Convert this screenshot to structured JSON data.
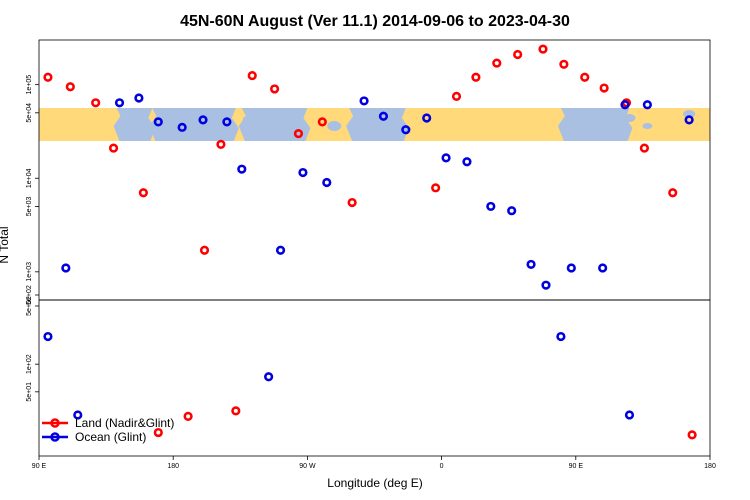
{
  "chart_data": {
    "type": "scatter",
    "title": "45N-60N August (Ver 11.1)   2014-09-06 to 2023-04-30",
    "xlabel": "Longitude (deg E)",
    "ylabel": "N Total",
    "x_ticks": [
      {
        "value": -90,
        "label": "90 E"
      },
      {
        "value": -45,
        "label": "180"
      },
      {
        "value": 0,
        "label": "90 W"
      },
      {
        "value": 45,
        "label": "0"
      },
      {
        "value": 90,
        "label": "90 E"
      },
      {
        "value": 135,
        "label": "180"
      }
    ],
    "xlim": [
      -90,
      135
    ],
    "upper_panel": {
      "scale": "log",
      "ylim": [
        500,
        300000
      ],
      "y_ticks": [
        {
          "value": 500,
          "label": "5e+02"
        },
        {
          "value": 1000,
          "label": "1e+03"
        },
        {
          "value": 5000,
          "label": "5e+03"
        },
        {
          "value": 10000,
          "label": "1e+04"
        },
        {
          "value": 50000,
          "label": "5e+04"
        },
        {
          "value": 100000,
          "label": "1e+05"
        }
      ]
    },
    "lower_panel": {
      "scale": "log",
      "ylim": [
        10,
        500
      ],
      "y_ticks": [
        {
          "value": 50,
          "label": "5e+01"
        },
        {
          "value": 100,
          "label": "1e+02"
        },
        {
          "value": 500,
          "label": "5e+02"
        }
      ]
    },
    "map_band": {
      "land_color": "#FFD97A",
      "ocean_color": "#A9C0E2"
    },
    "series": [
      {
        "name": "Land (Nadir&Glint)",
        "color": "#FF0000",
        "points": [
          {
            "x": -87,
            "y": 120000
          },
          {
            "x": -79.5,
            "y": 95000
          },
          {
            "x": -71,
            "y": 64000
          },
          {
            "x": -65,
            "y": 21000
          },
          {
            "x": -55,
            "y": 7000
          },
          {
            "x": -34.5,
            "y": 1700
          },
          {
            "x": -29,
            "y": 23000
          },
          {
            "x": -18.5,
            "y": 125000
          },
          {
            "x": -11,
            "y": 90000
          },
          {
            "x": -3,
            "y": 30000
          },
          {
            "x": 5,
            "y": 40000
          },
          {
            "x": 15,
            "y": 5500
          },
          {
            "x": 43,
            "y": 7900
          },
          {
            "x": 50,
            "y": 75000
          },
          {
            "x": 56.5,
            "y": 120000
          },
          {
            "x": 63.5,
            "y": 170000
          },
          {
            "x": 70.5,
            "y": 210000
          },
          {
            "x": 79,
            "y": 240000
          },
          {
            "x": 86,
            "y": 165000
          },
          {
            "x": 93,
            "y": 120000
          },
          {
            "x": 99.5,
            "y": 92000
          },
          {
            "x": 107,
            "y": 64000
          },
          {
            "x": 113,
            "y": 21000
          },
          {
            "x": 122.5,
            "y": 7000
          },
          {
            "x": -40,
            "y": 27
          },
          {
            "x": -24,
            "y": 31
          },
          {
            "x": -50,
            "y": 18
          },
          {
            "x": 129,
            "y": 17
          }
        ]
      },
      {
        "name": "Ocean (Glint)",
        "color": "#0000E0",
        "points": [
          {
            "x": -81,
            "y": 1100
          },
          {
            "x": -63,
            "y": 64000
          },
          {
            "x": -56.5,
            "y": 72000
          },
          {
            "x": -50,
            "y": 40000
          },
          {
            "x": -42,
            "y": 35000
          },
          {
            "x": -35,
            "y": 42000
          },
          {
            "x": -27,
            "y": 40000
          },
          {
            "x": -22,
            "y": 12500
          },
          {
            "x": -9,
            "y": 1700
          },
          {
            "x": -1.5,
            "y": 11500
          },
          {
            "x": 6.5,
            "y": 9000
          },
          {
            "x": 19,
            "y": 67000
          },
          {
            "x": 25.5,
            "y": 46000
          },
          {
            "x": 33,
            "y": 33000
          },
          {
            "x": 40,
            "y": 44000
          },
          {
            "x": 46.5,
            "y": 16500
          },
          {
            "x": 53.5,
            "y": 15000
          },
          {
            "x": 61.5,
            "y": 5000
          },
          {
            "x": 68.5,
            "y": 4500
          },
          {
            "x": 75,
            "y": 1200
          },
          {
            "x": 80,
            "y": 720
          },
          {
            "x": 88.5,
            "y": 1100
          },
          {
            "x": 99,
            "y": 1100
          },
          {
            "x": 106.5,
            "y": 61000
          },
          {
            "x": 114,
            "y": 61000
          },
          {
            "x": 128,
            "y": 42000
          },
          {
            "x": -87,
            "y": 200
          },
          {
            "x": -77,
            "y": 28
          },
          {
            "x": -13,
            "y": 73
          },
          {
            "x": 85,
            "y": 200
          },
          {
            "x": 108,
            "y": 28
          }
        ]
      }
    ],
    "legend": {
      "position": "bottom-left"
    }
  }
}
